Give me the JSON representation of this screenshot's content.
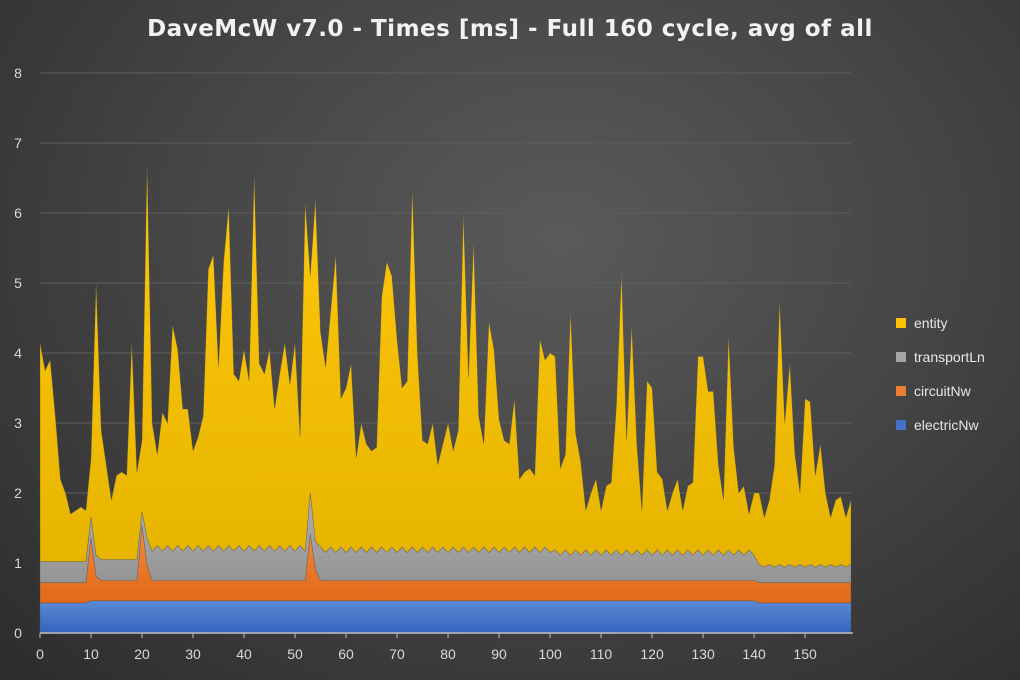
{
  "chart_data": {
    "type": "area",
    "stacked": true,
    "title": "DaveMcW v7.0 - Times [ms] - Full 160 cycle, avg of all",
    "xlabel": "",
    "ylabel": "",
    "xlim": [
      0,
      159
    ],
    "ylim": [
      0,
      8
    ],
    "x_ticks": [
      0,
      10,
      20,
      30,
      40,
      50,
      60,
      70,
      80,
      90,
      100,
      110,
      120,
      130,
      140,
      150
    ],
    "y_ticks": [
      0,
      1,
      2,
      3,
      4,
      5,
      6,
      7,
      8
    ],
    "grid": true,
    "legend_position": "right",
    "series": [
      {
        "name": "electricNw",
        "color": "#4472C4",
        "values": [
          0.43,
          0.43,
          0.43,
          0.43,
          0.43,
          0.43,
          0.43,
          0.43,
          0.43,
          0.43,
          0.46,
          0.46,
          0.46,
          0.46,
          0.46,
          0.46,
          0.46,
          0.46,
          0.46,
          0.46,
          0.46,
          0.46,
          0.46,
          0.46,
          0.46,
          0.46,
          0.46,
          0.46,
          0.46,
          0.46,
          0.46,
          0.46,
          0.46,
          0.46,
          0.46,
          0.46,
          0.46,
          0.46,
          0.46,
          0.46,
          0.46,
          0.46,
          0.46,
          0.46,
          0.46,
          0.46,
          0.46,
          0.46,
          0.46,
          0.46,
          0.46,
          0.46,
          0.46,
          0.46,
          0.46,
          0.46,
          0.46,
          0.46,
          0.46,
          0.46,
          0.46,
          0.46,
          0.46,
          0.46,
          0.46,
          0.46,
          0.46,
          0.46,
          0.46,
          0.46,
          0.46,
          0.46,
          0.46,
          0.46,
          0.46,
          0.46,
          0.46,
          0.46,
          0.46,
          0.46,
          0.46,
          0.46,
          0.46,
          0.46,
          0.46,
          0.46,
          0.46,
          0.46,
          0.46,
          0.46,
          0.46,
          0.46,
          0.46,
          0.46,
          0.46,
          0.46,
          0.46,
          0.46,
          0.46,
          0.46,
          0.46,
          0.46,
          0.46,
          0.46,
          0.46,
          0.46,
          0.46,
          0.46,
          0.46,
          0.46,
          0.46,
          0.46,
          0.46,
          0.46,
          0.46,
          0.46,
          0.46,
          0.46,
          0.46,
          0.46,
          0.46,
          0.46,
          0.46,
          0.46,
          0.46,
          0.46,
          0.46,
          0.46,
          0.46,
          0.46,
          0.46,
          0.46,
          0.46,
          0.46,
          0.46,
          0.46,
          0.46,
          0.46,
          0.46,
          0.46,
          0.46,
          0.43,
          0.43,
          0.43,
          0.43,
          0.43,
          0.43,
          0.43,
          0.43,
          0.43,
          0.43,
          0.43,
          0.43,
          0.43,
          0.43,
          0.43,
          0.43,
          0.43,
          0.43,
          0.43
        ]
      },
      {
        "name": "circuitNw",
        "color": "#ED7D31",
        "values": [
          0.29,
          0.29,
          0.29,
          0.29,
          0.29,
          0.29,
          0.29,
          0.29,
          0.29,
          0.29,
          0.9,
          0.35,
          0.29,
          0.29,
          0.29,
          0.29,
          0.29,
          0.29,
          0.29,
          0.29,
          1.08,
          0.5,
          0.29,
          0.29,
          0.29,
          0.29,
          0.29,
          0.29,
          0.29,
          0.29,
          0.29,
          0.29,
          0.29,
          0.29,
          0.29,
          0.29,
          0.29,
          0.29,
          0.29,
          0.29,
          0.29,
          0.29,
          0.29,
          0.29,
          0.29,
          0.29,
          0.29,
          0.29,
          0.29,
          0.29,
          0.29,
          0.29,
          0.29,
          0.95,
          0.45,
          0.29,
          0.29,
          0.29,
          0.29,
          0.29,
          0.29,
          0.29,
          0.29,
          0.29,
          0.29,
          0.29,
          0.29,
          0.29,
          0.29,
          0.29,
          0.29,
          0.29,
          0.29,
          0.29,
          0.29,
          0.29,
          0.29,
          0.29,
          0.29,
          0.29,
          0.29,
          0.29,
          0.29,
          0.29,
          0.29,
          0.29,
          0.29,
          0.29,
          0.29,
          0.29,
          0.29,
          0.29,
          0.29,
          0.29,
          0.29,
          0.29,
          0.29,
          0.29,
          0.29,
          0.29,
          0.29,
          0.29,
          0.29,
          0.29,
          0.29,
          0.29,
          0.29,
          0.29,
          0.29,
          0.29,
          0.29,
          0.29,
          0.29,
          0.29,
          0.29,
          0.29,
          0.29,
          0.29,
          0.29,
          0.29,
          0.29,
          0.29,
          0.29,
          0.29,
          0.29,
          0.29,
          0.29,
          0.29,
          0.29,
          0.29,
          0.29,
          0.29,
          0.29,
          0.29,
          0.29,
          0.29,
          0.29,
          0.29,
          0.29,
          0.29,
          0.29,
          0.29,
          0.29,
          0.29,
          0.29,
          0.29,
          0.29,
          0.29,
          0.29,
          0.29,
          0.29,
          0.29,
          0.29,
          0.29,
          0.29,
          0.29,
          0.29,
          0.29,
          0.29,
          0.29
        ]
      },
      {
        "name": "transportLn",
        "color": "#A5A5A5",
        "values": [
          0.3,
          0.3,
          0.3,
          0.3,
          0.3,
          0.3,
          0.3,
          0.3,
          0.3,
          0.3,
          0.3,
          0.3,
          0.3,
          0.3,
          0.3,
          0.3,
          0.3,
          0.3,
          0.3,
          0.3,
          0.2,
          0.4,
          0.42,
          0.5,
          0.42,
          0.5,
          0.42,
          0.5,
          0.42,
          0.5,
          0.42,
          0.5,
          0.42,
          0.5,
          0.42,
          0.5,
          0.42,
          0.5,
          0.42,
          0.5,
          0.42,
          0.5,
          0.42,
          0.5,
          0.42,
          0.5,
          0.42,
          0.5,
          0.42,
          0.5,
          0.42,
          0.5,
          0.42,
          0.6,
          0.4,
          0.48,
          0.4,
          0.48,
          0.4,
          0.48,
          0.4,
          0.48,
          0.4,
          0.48,
          0.4,
          0.48,
          0.4,
          0.48,
          0.4,
          0.48,
          0.4,
          0.48,
          0.4,
          0.48,
          0.4,
          0.48,
          0.4,
          0.48,
          0.4,
          0.48,
          0.4,
          0.48,
          0.4,
          0.48,
          0.4,
          0.48,
          0.4,
          0.48,
          0.4,
          0.48,
          0.4,
          0.48,
          0.4,
          0.48,
          0.4,
          0.48,
          0.4,
          0.48,
          0.4,
          0.48,
          0.4,
          0.44,
          0.36,
          0.44,
          0.36,
          0.44,
          0.36,
          0.44,
          0.36,
          0.44,
          0.36,
          0.44,
          0.36,
          0.44,
          0.36,
          0.44,
          0.36,
          0.44,
          0.36,
          0.44,
          0.36,
          0.44,
          0.36,
          0.44,
          0.36,
          0.44,
          0.36,
          0.44,
          0.36,
          0.44,
          0.36,
          0.44,
          0.36,
          0.44,
          0.36,
          0.44,
          0.36,
          0.44,
          0.36,
          0.44,
          0.36,
          0.26,
          0.22,
          0.26,
          0.22,
          0.26,
          0.22,
          0.26,
          0.22,
          0.26,
          0.22,
          0.26,
          0.22,
          0.26,
          0.22,
          0.26,
          0.22,
          0.26,
          0.22,
          0.26
        ]
      },
      {
        "name": "entity",
        "color": "#FFC000",
        "values": [
          3.13,
          2.73,
          2.88,
          2.08,
          1.18,
          0.98,
          0.68,
          0.73,
          0.78,
          0.73,
          0.84,
          3.89,
          1.85,
          1.35,
          0.85,
          1.2,
          1.25,
          1.2,
          3.1,
          1.25,
          1.01,
          5.34,
          1.83,
          1.3,
          1.98,
          1.75,
          3.23,
          2.8,
          2.03,
          1.95,
          1.43,
          1.55,
          1.93,
          3.95,
          4.23,
          2.55,
          4.13,
          4.85,
          2.53,
          2.35,
          2.88,
          2.35,
          5.38,
          2.6,
          2.53,
          2.8,
          2.03,
          2.45,
          2.98,
          2.3,
          2.98,
          1.55,
          4.98,
          3.09,
          4.89,
          3.07,
          2.65,
          3.37,
          4.25,
          2.12,
          2.35,
          2.62,
          1.35,
          1.77,
          1.55,
          1.37,
          1.5,
          3.57,
          4.15,
          3.87,
          3.05,
          2.27,
          2.45,
          5.12,
          2.85,
          1.52,
          1.55,
          1.77,
          1.25,
          1.47,
          1.85,
          1.37,
          1.75,
          4.77,
          2.5,
          4.37,
          1.95,
          1.47,
          3.3,
          2.82,
          1.9,
          1.52,
          1.55,
          2.12,
          1.05,
          1.07,
          1.2,
          1.02,
          3.05,
          2.67,
          2.85,
          2.76,
          1.24,
          1.36,
          3.49,
          1.66,
          1.34,
          0.56,
          0.89,
          1.01,
          0.64,
          0.91,
          1.04,
          2.06,
          4.04,
          1.56,
          3.29,
          1.51,
          0.64,
          2.41,
          2.39,
          1.11,
          1.09,
          0.56,
          0.89,
          1.01,
          0.64,
          0.91,
          1.04,
          2.76,
          2.84,
          2.26,
          2.34,
          1.21,
          0.79,
          3.06,
          1.54,
          0.81,
          0.99,
          0.51,
          0.89,
          1.02,
          0.71,
          0.92,
          1.46,
          3.77,
          2.06,
          2.87,
          1.61,
          1.02,
          2.41,
          2.32,
          1.31,
          1.72,
          1.06,
          0.67,
          0.96,
          0.97,
          0.71,
          0.92
        ]
      }
    ]
  }
}
